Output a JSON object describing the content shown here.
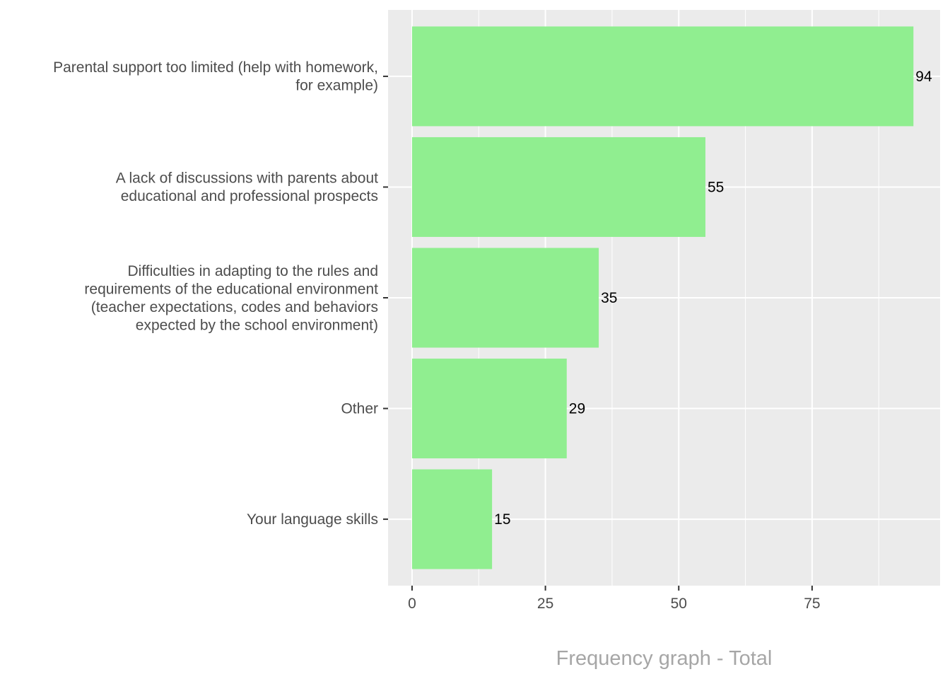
{
  "chart_data": {
    "type": "bar",
    "orientation": "horizontal",
    "categories": [
      [
        "Parental support too limited (help with homework,",
        "for example)"
      ],
      [
        "A lack of discussions with parents about",
        "educational and professional prospects"
      ],
      [
        "Difficulties in adapting to the rules and",
        "requirements of the educational environment",
        "(teacher expectations, codes and behaviors",
        "expected by the school environment)"
      ],
      [
        "Other"
      ],
      [
        "Your language skills"
      ]
    ],
    "values": [
      94,
      55,
      35,
      29,
      15
    ],
    "xlabel": "Frequency graph - Total",
    "ylabel": "",
    "xlim": [
      -4.5,
      99
    ],
    "xticks": [
      0,
      25,
      50,
      75
    ],
    "grid": true,
    "bar_color": "#90ee90",
    "panel_color": "#ebebeb",
    "grid_color": "#ffffff"
  }
}
